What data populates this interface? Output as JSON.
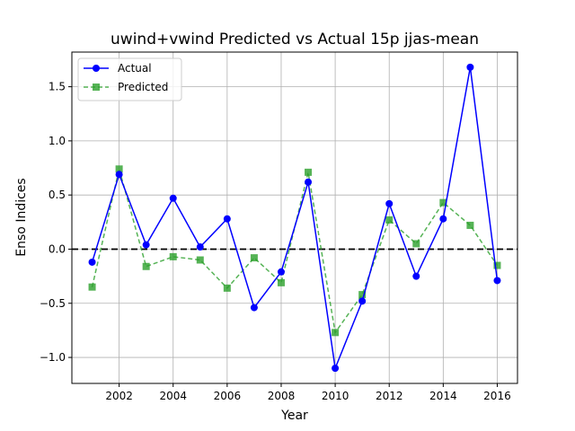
{
  "chart_data": {
    "type": "line",
    "title": "uwind+vwind Predicted vs Actual 15p jjas-mean",
    "xlabel": "Year",
    "ylabel": "Enso Indices",
    "xlim": [
      2000.25,
      2016.75
    ],
    "ylim": [
      -1.24,
      1.82
    ],
    "x_ticks": [
      2002,
      2004,
      2006,
      2008,
      2010,
      2012,
      2014,
      2016
    ],
    "y_ticks": [
      -1.0,
      -0.5,
      0.0,
      0.5,
      1.0,
      1.5
    ],
    "y_tick_labels": [
      "−1.0",
      "−0.5",
      "0.0",
      "0.5",
      "1.0",
      "1.5"
    ],
    "grid": true,
    "legend_position": "top-left",
    "zero_line": {
      "y": 0,
      "style": "dashed",
      "color": "#000000"
    },
    "x": [
      2001,
      2002,
      2003,
      2004,
      2005,
      2006,
      2007,
      2008,
      2009,
      2010,
      2011,
      2012,
      2013,
      2014,
      2015,
      2016
    ],
    "series": [
      {
        "name": "Actual",
        "color": "#0000ff",
        "style": "solid",
        "marker": "circle",
        "values": [
          -0.12,
          0.69,
          0.04,
          0.47,
          0.02,
          0.28,
          -0.54,
          -0.21,
          0.62,
          -1.1,
          -0.48,
          0.42,
          -0.25,
          0.28,
          1.68,
          -0.29
        ]
      },
      {
        "name": "Predicted",
        "color": "#2ca02c",
        "style": "dashed",
        "marker": "square",
        "values": [
          -0.35,
          0.74,
          -0.16,
          -0.07,
          -0.1,
          -0.36,
          -0.08,
          -0.31,
          0.71,
          -0.77,
          -0.42,
          0.27,
          0.05,
          0.43,
          0.22,
          -0.15
        ]
      }
    ]
  }
}
